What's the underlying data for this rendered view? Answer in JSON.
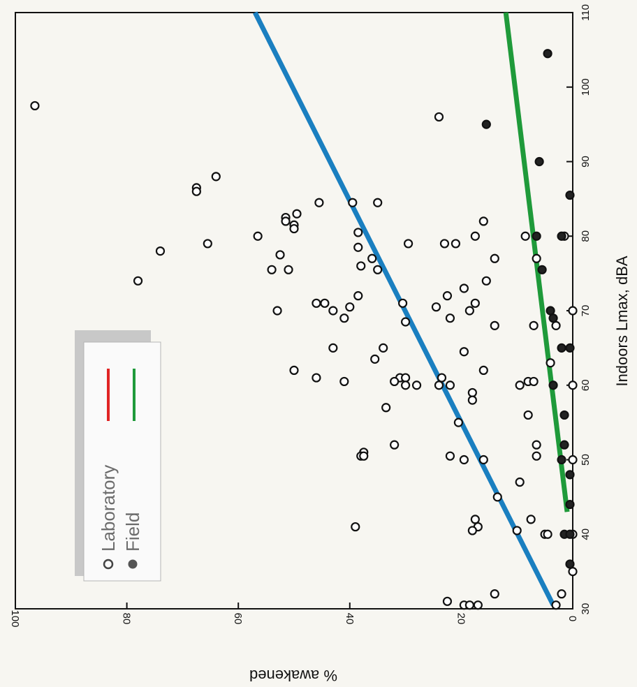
{
  "chart_data": {
    "type": "scatter",
    "xlabel": "Indoors Lmax, dBA",
    "ylabel": "% awakened",
    "xlim": [
      30,
      110
    ],
    "ylim": [
      0,
      100
    ],
    "x_ticks": [
      "30",
      "40",
      "50",
      "60",
      "70",
      "80",
      "90",
      "100",
      "110"
    ],
    "y_ticks": [
      "0",
      "20",
      "40",
      "60",
      "80",
      "100"
    ],
    "grid": false,
    "legend": {
      "placement": "top-left",
      "entries": [
        {
          "label": "Laboratory",
          "marker": "open-circle",
          "line_color": "#e02424"
        },
        {
          "label": "Field",
          "marker": "filled-circle",
          "line_color": "#1f9a3a"
        }
      ]
    },
    "fit_lines": [
      {
        "color": "#1a7fc0",
        "from": [
          30.5,
          3.5
        ],
        "to": [
          110,
          57
        ]
      },
      {
        "color": "#1f9a3a",
        "from": [
          43,
          1
        ],
        "to": [
          110,
          12
        ]
      }
    ],
    "series": [
      {
        "name": "Laboratory",
        "marker": "open",
        "points": [
          [
            97.5,
            96.5
          ],
          [
            96,
            24
          ],
          [
            88,
            64
          ],
          [
            86.5,
            67.5
          ],
          [
            86,
            67.5
          ],
          [
            84.5,
            45.5
          ],
          [
            84.5,
            39.5
          ],
          [
            84.5,
            35
          ],
          [
            83,
            49.5
          ],
          [
            82.5,
            51.5
          ],
          [
            82,
            51.5
          ],
          [
            82,
            16
          ],
          [
            81.5,
            50
          ],
          [
            81,
            50
          ],
          [
            80.5,
            38.5
          ],
          [
            80,
            56.5
          ],
          [
            80,
            17.5
          ],
          [
            80,
            8.5
          ],
          [
            80,
            1.5
          ],
          [
            79,
            65.5
          ],
          [
            79,
            29.5
          ],
          [
            79,
            23
          ],
          [
            79,
            21
          ],
          [
            78.5,
            38.5
          ],
          [
            78,
            74
          ],
          [
            77.5,
            52.5
          ],
          [
            77,
            36
          ],
          [
            77,
            14
          ],
          [
            77,
            6.5
          ],
          [
            76,
            38
          ],
          [
            75.5,
            54
          ],
          [
            75.5,
            35
          ],
          [
            75.5,
            51
          ],
          [
            74,
            78
          ],
          [
            74,
            15.5
          ],
          [
            73,
            19.5
          ],
          [
            72,
            38.5
          ],
          [
            72,
            22.5
          ],
          [
            71,
            46
          ],
          [
            71,
            44.5
          ],
          [
            71,
            30.5
          ],
          [
            71,
            17.5
          ],
          [
            70.5,
            40
          ],
          [
            70.5,
            24.5
          ],
          [
            70,
            53
          ],
          [
            70,
            43
          ],
          [
            70,
            18.5
          ],
          [
            70,
            0
          ],
          [
            69,
            41
          ],
          [
            69,
            22
          ],
          [
            68.5,
            30
          ],
          [
            68,
            14
          ],
          [
            68,
            7
          ],
          [
            68,
            3
          ],
          [
            65,
            43
          ],
          [
            65,
            34
          ],
          [
            64.5,
            19.5
          ],
          [
            63.5,
            35.5
          ],
          [
            63,
            4
          ],
          [
            62,
            50
          ],
          [
            62,
            16
          ],
          [
            61,
            46
          ],
          [
            61,
            31
          ],
          [
            61,
            30
          ],
          [
            61,
            23.5
          ],
          [
            60.5,
            41
          ],
          [
            60.5,
            32
          ],
          [
            60.5,
            8
          ],
          [
            60.5,
            7
          ],
          [
            60,
            30
          ],
          [
            60,
            28
          ],
          [
            60,
            24
          ],
          [
            60,
            22
          ],
          [
            60,
            9.5
          ],
          [
            60,
            0
          ],
          [
            59,
            18
          ],
          [
            58,
            18
          ],
          [
            57,
            33.5
          ],
          [
            56,
            8
          ],
          [
            55,
            20.5
          ],
          [
            52,
            32
          ],
          [
            52,
            6.5
          ],
          [
            51,
            37.5
          ],
          [
            50.5,
            38
          ],
          [
            50.5,
            37.5
          ],
          [
            50.5,
            22
          ],
          [
            50.5,
            6.5
          ],
          [
            50,
            16
          ],
          [
            50,
            19.5
          ],
          [
            50,
            0
          ],
          [
            47,
            9.5
          ],
          [
            45,
            13.5
          ],
          [
            42,
            17.5
          ],
          [
            42,
            7.5
          ],
          [
            41,
            39
          ],
          [
            41,
            17
          ],
          [
            40.5,
            18
          ],
          [
            40.5,
            10
          ],
          [
            40,
            5
          ],
          [
            40,
            4.5
          ],
          [
            40,
            0
          ],
          [
            35,
            0
          ],
          [
            32,
            14
          ],
          [
            32,
            2
          ],
          [
            31,
            22.5
          ],
          [
            30.5,
            19.5
          ],
          [
            30.5,
            18.5
          ],
          [
            30.5,
            17
          ],
          [
            30.5,
            3
          ]
        ]
      },
      {
        "name": "Field",
        "marker": "filled",
        "points": [
          [
            104.5,
            4.5
          ],
          [
            95,
            15.5
          ],
          [
            90,
            6
          ],
          [
            85.5,
            0.5
          ],
          [
            80,
            6.5
          ],
          [
            80,
            2
          ],
          [
            75.5,
            5.5
          ],
          [
            70,
            4
          ],
          [
            69,
            3.5
          ],
          [
            65,
            2
          ],
          [
            65,
            0.5
          ],
          [
            60,
            3.5
          ],
          [
            56,
            1.5
          ],
          [
            52,
            1.5
          ],
          [
            50,
            2
          ],
          [
            48,
            0.5
          ],
          [
            44,
            0.5
          ],
          [
            40,
            1.5
          ],
          [
            40,
            0.5
          ],
          [
            36,
            0.5
          ]
        ]
      }
    ]
  }
}
